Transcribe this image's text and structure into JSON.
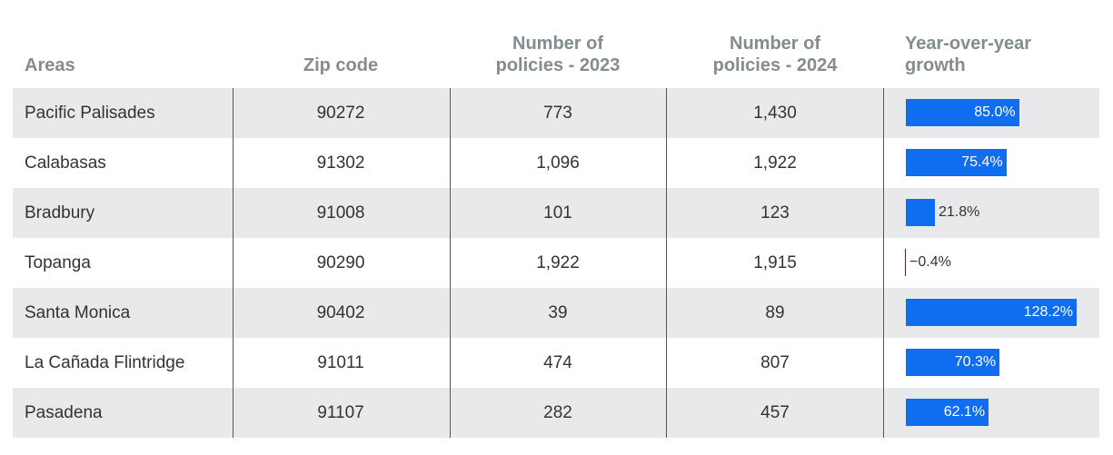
{
  "table": {
    "headers": [
      "Areas",
      "Zip code",
      "Number of policies - 2023",
      "Number of policies - 2024",
      "Year-over-year growth"
    ],
    "rows": [
      [
        "Pacific Palisades",
        "90272",
        "773",
        "1,430"
      ],
      [
        "Calabasas",
        "91302",
        "1,096",
        "1,922"
      ],
      [
        "Bradbury",
        "91008",
        "101",
        "123"
      ],
      [
        "Topanga",
        "90290",
        "1,922",
        "1,915"
      ],
      [
        "Santa Monica",
        "90402",
        "39",
        "89"
      ],
      [
        "La Cañada Flintridge",
        "91011",
        "474",
        "807"
      ],
      [
        "Pasadena",
        "91107",
        "282",
        "457"
      ]
    ],
    "growth": {
      "color": "#0f6ef0",
      "values": [
        85.0,
        75.4,
        21.8,
        -0.4,
        128.2,
        70.3,
        62.1
      ],
      "value_labels": [
        "85.0%",
        "75.4%",
        "21.8%",
        "−0.4%",
        "128.2%",
        "70.3%",
        "62.1%"
      ]
    }
  }
}
